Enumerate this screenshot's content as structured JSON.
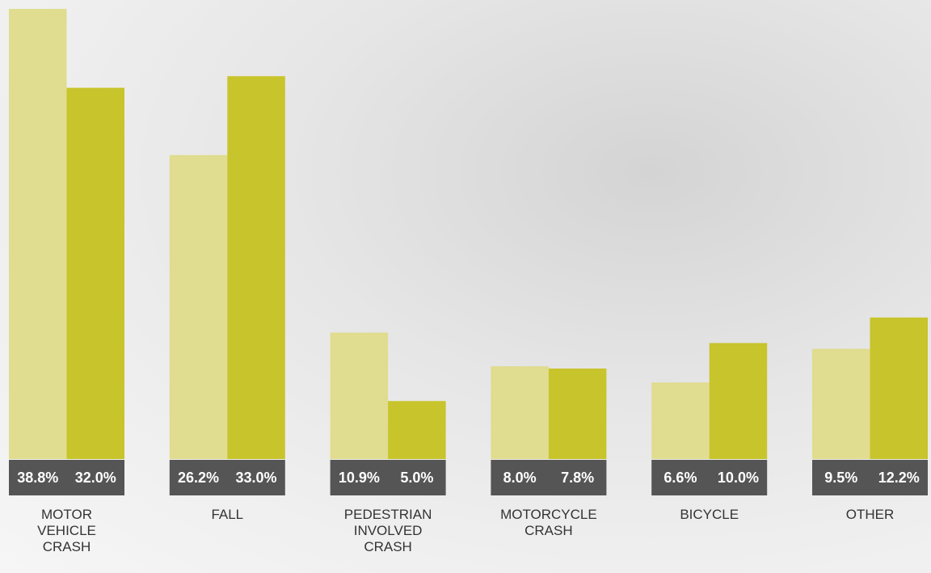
{
  "chart_data": {
    "type": "bar",
    "categories": [
      "MOTOR VEHICLE CRASH",
      "FALL",
      "PEDESTRIAN INVOLVED CRASH",
      "MOTORCYCLE CRASH",
      "BICYCLE",
      "OTHER"
    ],
    "series": [
      {
        "color": "#e0dc90",
        "values": [
          38.8,
          26.2,
          10.9,
          8.0,
          6.6,
          9.5
        ],
        "value_labels": [
          "38.8%",
          "26.2%",
          "10.9%",
          "8.0%",
          "6.6%",
          "9.5%"
        ]
      },
      {
        "color": "#c8c42c",
        "values": [
          32.0,
          33.0,
          5.0,
          7.8,
          10.0,
          12.2
        ],
        "value_labels": [
          "32.0%",
          "33.0%",
          "5.0%",
          "7.8%",
          "10.0%",
          "12.2%"
        ]
      }
    ]
  }
}
